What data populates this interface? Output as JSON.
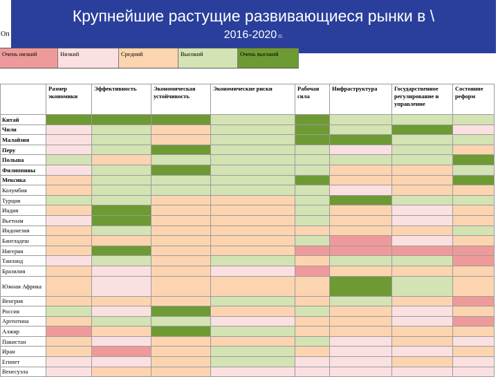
{
  "title": {
    "line1": "Крупнейшие растущие развивающиеся рынки в \\",
    "line2": "2016-2020",
    "line2_suffix": "гг."
  },
  "left_stub": "Оп",
  "legend": [
    {
      "label": "Очень низкий",
      "color": "#ef9a9a"
    },
    {
      "label": "Низкий",
      "color": "#fbe0e2"
    },
    {
      "label": "Средний",
      "color": "#fcd4b0"
    },
    {
      "label": "Высокий",
      "color": "#d3e3b4"
    },
    {
      "label": "Очень высокий",
      "color": "#6e9a33"
    }
  ],
  "colors": {
    "VL": "#ef9a9a",
    "L": "#fbe0e2",
    "M": "#fcd4b0",
    "H": "#d3e3b4",
    "VH": "#6e9a33",
    "title_bg": "#2a3f9c"
  },
  "columns": [
    "Размер экономики",
    "Эффективность",
    "Экономическая устойчивость",
    "Экономические риски",
    "Рабочая сила",
    "Инфраструктура",
    "Государственное регулирование и управление",
    "Состояние реформ"
  ],
  "rows": [
    {
      "country": "Китай",
      "bold": true,
      "cells": [
        "VH",
        "VH",
        "VH",
        "H",
        "VH",
        "H",
        "H",
        "H"
      ]
    },
    {
      "country": "Чили",
      "bold": true,
      "cells": [
        "L",
        "H",
        "M",
        "H",
        "VH",
        "H",
        "VH",
        "L"
      ]
    },
    {
      "country": "Малайзия",
      "bold": true,
      "cells": [
        "L",
        "H",
        "M",
        "H",
        "VH",
        "VH",
        "H",
        "H"
      ]
    },
    {
      "country": "Перу",
      "bold": true,
      "cells": [
        "L",
        "H",
        "VH",
        "H",
        "H",
        "L",
        "H",
        "M"
      ]
    },
    {
      "country": "Польша",
      "bold": true,
      "cells": [
        "H",
        "M",
        "H",
        "H",
        "H",
        "H",
        "H",
        "VH"
      ]
    },
    {
      "country": "Филиппины",
      "bold": true,
      "cells": [
        "L",
        "H",
        "VH",
        "H",
        "H",
        "M",
        "M",
        "H"
      ]
    },
    {
      "country": "Мексика",
      "bold": true,
      "cells": [
        "M",
        "H",
        "H",
        "H",
        "VH",
        "M",
        "M",
        "VH"
      ]
    },
    {
      "country": "Колумбия",
      "bold": false,
      "cells": [
        "M",
        "H",
        "H",
        "H",
        "H",
        "L",
        "M",
        "M"
      ]
    },
    {
      "country": "Турция",
      "bold": false,
      "cells": [
        "H",
        "H",
        "M",
        "M",
        "H",
        "VH",
        "H",
        "H"
      ]
    },
    {
      "country": "Индия",
      "bold": false,
      "cells": [
        "M",
        "VH",
        "M",
        "M",
        "H",
        "M",
        "L",
        "M"
      ]
    },
    {
      "country": "Вьетнам",
      "bold": false,
      "cells": [
        "L",
        "VH",
        "M",
        "M",
        "H",
        "M",
        "L",
        "M"
      ]
    },
    {
      "country": "Индонезия",
      "bold": false,
      "cells": [
        "M",
        "H",
        "M",
        "M",
        "M",
        "M",
        "M",
        "H"
      ]
    },
    {
      "country": "Бангладеш",
      "bold": false,
      "cells": [
        "M",
        "M",
        "M",
        "M",
        "H",
        "VL",
        "L",
        "M"
      ]
    },
    {
      "country": "Нигерия",
      "bold": false,
      "cells": [
        "M",
        "VH",
        "M",
        "M",
        "VL",
        "VL",
        "VL",
        "VL"
      ]
    },
    {
      "country": "Таиланд",
      "bold": false,
      "cells": [
        "L",
        "H",
        "M",
        "H",
        "M",
        "H",
        "H",
        "VL"
      ]
    },
    {
      "country": "Бразилия",
      "bold": false,
      "cells": [
        "M",
        "L",
        "M",
        "L",
        "VL",
        "M",
        "M",
        "M"
      ]
    },
    {
      "country": "Южная Африка",
      "bold": false,
      "tall": true,
      "cells": [
        "M",
        "L",
        "M",
        "M",
        "M",
        "VH",
        "H",
        "M"
      ]
    },
    {
      "country": "Венгрия",
      "bold": false,
      "cells": [
        "M",
        "M",
        "M",
        "H",
        "M",
        "H",
        "M",
        "VL"
      ]
    },
    {
      "country": "Россия",
      "bold": false,
      "cells": [
        "H",
        "L",
        "VH",
        "M",
        "H",
        "M",
        "L",
        "M"
      ]
    },
    {
      "country": "Аргентина",
      "bold": false,
      "cells": [
        "M",
        "H",
        "H",
        "L",
        "M",
        "M",
        "L",
        "VL"
      ]
    },
    {
      "country": "Алжир",
      "bold": false,
      "cells": [
        "VL",
        "M",
        "VH",
        "H",
        "M",
        "M",
        "M",
        "M"
      ]
    },
    {
      "country": "Пакистан",
      "bold": false,
      "cells": [
        "M",
        "L",
        "M",
        "M",
        "H",
        "L",
        "M",
        "L"
      ]
    },
    {
      "country": "Иран",
      "bold": false,
      "cells": [
        "M",
        "VL",
        "M",
        "H",
        "M",
        "L",
        "L",
        "M"
      ]
    },
    {
      "country": "Египет",
      "bold": false,
      "cells": [
        "L",
        "L",
        "M",
        "H",
        "L",
        "L",
        "M",
        "L"
      ]
    },
    {
      "country": "Венесуэла",
      "bold": false,
      "cells": [
        "L",
        "M",
        "M",
        "L",
        "L",
        "L",
        "L",
        "L"
      ]
    }
  ]
}
